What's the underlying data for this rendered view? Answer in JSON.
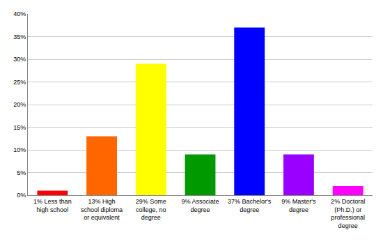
{
  "chart_data": {
    "type": "bar",
    "categories": [
      "1% Less than high school",
      "13% High school diploma or equivalent",
      "29% Some college, no degree",
      "9% Associate degree",
      "37% Bachelor's degree",
      "9% Master's degree",
      "2% Doctoral (Ph.D.) or professional degree"
    ],
    "values": [
      1,
      13,
      29,
      9,
      37,
      9,
      2
    ],
    "colors": [
      "#ff0000",
      "#ff6600",
      "#ffff00",
      "#009900",
      "#0000ff",
      "#9900ff",
      "#ff00ff"
    ],
    "ylim": [
      0,
      40
    ],
    "yticks": [
      {
        "value": 0,
        "label": "0%"
      },
      {
        "value": 5,
        "label": "5%"
      },
      {
        "value": 10,
        "label": "10%"
      },
      {
        "value": 15,
        "label": "15%"
      },
      {
        "value": 20,
        "label": "20%"
      },
      {
        "value": 25,
        "label": "25%"
      },
      {
        "value": 30,
        "label": "30%"
      },
      {
        "value": 35,
        "label": "35%"
      },
      {
        "value": 40,
        "label": "40%"
      }
    ],
    "grid": true
  }
}
